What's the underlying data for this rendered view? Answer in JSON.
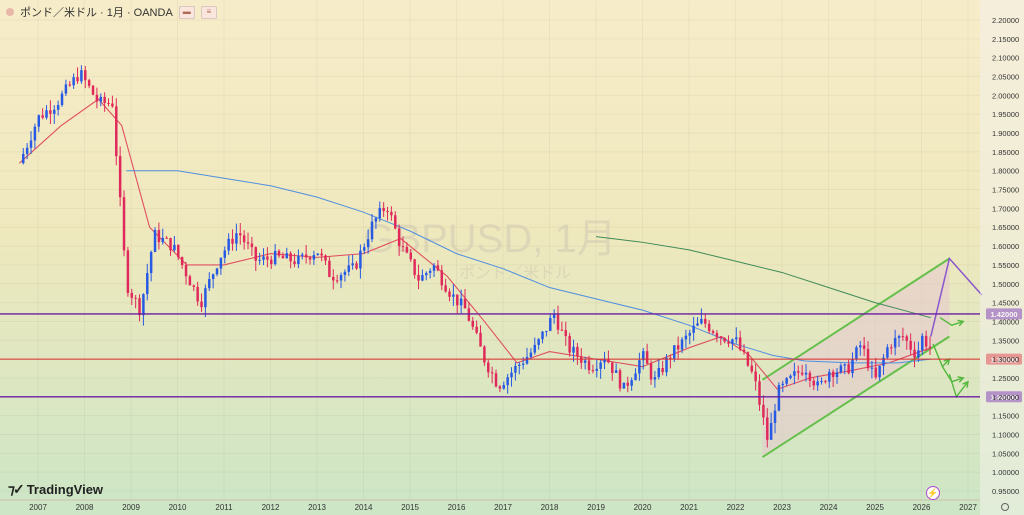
{
  "header": {
    "symbol_text": "ポンド／米ドル · 1月 · OANDA"
  },
  "watermark": {
    "symbol": "GBPUSD, 1月",
    "subtitle": "ポンド／米ドル"
  },
  "brand": {
    "name": "TradingView"
  },
  "colors": {
    "bg_top": "#f7ecc9",
    "bg_bottom": "#cce6c6",
    "up": "#2659e4",
    "down": "#e0285a",
    "ma_short": "#e04f5f",
    "ma_blue": "#4f8fe0",
    "ma_green": "#3f8a58",
    "level_purple": "#6a1fa0",
    "level_red": "#d92b2b",
    "channel": "#64c04a",
    "forecast_purple": "#8a55cc",
    "forecast_green": "#54b83e"
  },
  "chart_data": {
    "type": "candlestick",
    "title": "GBPUSD, 1月",
    "x_axis": {
      "ticks": [
        "2007",
        "2008",
        "2009",
        "2010",
        "2011",
        "2012",
        "2013",
        "2014",
        "2015",
        "2016",
        "2017",
        "2018",
        "2019",
        "2020",
        "2021",
        "2022",
        "2023",
        "2024",
        "2025",
        "2026",
        "2027"
      ]
    },
    "y_axis": {
      "range": [
        0.95,
        2.22
      ],
      "ticks": [
        "2.20000",
        "2.15000",
        "2.10000",
        "2.05000",
        "2.00000",
        "1.95000",
        "1.90000",
        "1.85000",
        "1.80000",
        "1.75000",
        "1.70000",
        "1.65000",
        "1.60000",
        "1.55000",
        "1.50000",
        "1.45000",
        "1.40000",
        "1.35000",
        "1.30000",
        "1.25000",
        "1.20000",
        "1.15000",
        "1.10000",
        "1.05000",
        "1.00000",
        "0.95000"
      ]
    },
    "horizontal_levels": [
      {
        "value": 1.42,
        "label": "1.42000",
        "color": "#6a1fa0"
      },
      {
        "value": 1.3,
        "label": "1.30000",
        "color": "#d92b2b"
      },
      {
        "value": 1.2,
        "label": "1.20000",
        "color": "#6a1fa0"
      }
    ],
    "price_anchors": [
      [
        2006.6,
        1.82
      ],
      [
        2007.0,
        1.94
      ],
      [
        2007.4,
        1.98
      ],
      [
        2007.9,
        2.06
      ],
      [
        2008.3,
        1.98
      ],
      [
        2008.6,
        1.98
      ],
      [
        2008.9,
        1.5
      ],
      [
        2009.2,
        1.43
      ],
      [
        2009.5,
        1.63
      ],
      [
        2009.9,
        1.6
      ],
      [
        2010.3,
        1.5
      ],
      [
        2010.5,
        1.45
      ],
      [
        2010.9,
        1.57
      ],
      [
        2011.3,
        1.64
      ],
      [
        2011.7,
        1.56
      ],
      [
        2012.1,
        1.57
      ],
      [
        2012.6,
        1.56
      ],
      [
        2013.0,
        1.59
      ],
      [
        2013.3,
        1.52
      ],
      [
        2013.8,
        1.54
      ],
      [
        2014.2,
        1.66
      ],
      [
        2014.5,
        1.71
      ],
      [
        2014.8,
        1.6
      ],
      [
        2015.2,
        1.51
      ],
      [
        2015.5,
        1.55
      ],
      [
        2015.9,
        1.47
      ],
      [
        2016.2,
        1.43
      ],
      [
        2016.6,
        1.3
      ],
      [
        2016.9,
        1.23
      ],
      [
        2017.3,
        1.28
      ],
      [
        2017.7,
        1.33
      ],
      [
        2018.1,
        1.42
      ],
      [
        2018.4,
        1.33
      ],
      [
        2018.9,
        1.28
      ],
      [
        2019.2,
        1.31
      ],
      [
        2019.6,
        1.22
      ],
      [
        2020.0,
        1.31
      ],
      [
        2020.25,
        1.24
      ],
      [
        2020.6,
        1.31
      ],
      [
        2020.9,
        1.35
      ],
      [
        2021.1,
        1.38
      ],
      [
        2021.3,
        1.4
      ],
      [
        2021.7,
        1.36
      ],
      [
        2022.0,
        1.35
      ],
      [
        2022.4,
        1.25
      ],
      [
        2022.7,
        1.08
      ],
      [
        2022.9,
        1.21
      ],
      [
        2023.3,
        1.26
      ],
      [
        2023.5,
        1.28
      ],
      [
        2023.8,
        1.22
      ],
      [
        2024.0,
        1.27
      ],
      [
        2024.4,
        1.27
      ],
      [
        2024.7,
        1.34
      ],
      [
        2025.0,
        1.24
      ],
      [
        2025.3,
        1.34
      ],
      [
        2025.6,
        1.36
      ],
      [
        2025.9,
        1.31
      ],
      [
        2026.0,
        1.36
      ],
      [
        2026.2,
        1.33
      ]
    ],
    "moving_averages": [
      {
        "name": "MA short",
        "color": "#e04f5f",
        "points": [
          [
            2006.6,
            1.82
          ],
          [
            2007.5,
            1.92
          ],
          [
            2008.3,
            1.99
          ],
          [
            2008.8,
            1.92
          ],
          [
            2009.4,
            1.65
          ],
          [
            2010.2,
            1.55
          ],
          [
            2011.0,
            1.55
          ],
          [
            2012.0,
            1.58
          ],
          [
            2013.0,
            1.57
          ],
          [
            2014.0,
            1.58
          ],
          [
            2014.8,
            1.62
          ],
          [
            2015.8,
            1.52
          ],
          [
            2016.6,
            1.4
          ],
          [
            2017.3,
            1.29
          ],
          [
            2018.0,
            1.32
          ],
          [
            2019.0,
            1.3
          ],
          [
            2020.0,
            1.28
          ],
          [
            2021.0,
            1.33
          ],
          [
            2021.7,
            1.36
          ],
          [
            2022.3,
            1.31
          ],
          [
            2022.9,
            1.22
          ],
          [
            2023.6,
            1.25
          ],
          [
            2024.5,
            1.27
          ],
          [
            2025.3,
            1.29
          ],
          [
            2026.2,
            1.33
          ]
        ]
      },
      {
        "name": "MA blue",
        "color": "#4f8fe0",
        "points": [
          [
            2008.9,
            1.8
          ],
          [
            2010.0,
            1.8
          ],
          [
            2011.0,
            1.78
          ],
          [
            2012.0,
            1.76
          ],
          [
            2013.0,
            1.73
          ],
          [
            2014.0,
            1.69
          ],
          [
            2015.0,
            1.64
          ],
          [
            2016.0,
            1.58
          ],
          [
            2017.0,
            1.54
          ],
          [
            2018.0,
            1.49
          ],
          [
            2019.0,
            1.46
          ],
          [
            2020.0,
            1.43
          ],
          [
            2021.0,
            1.39
          ],
          [
            2022.0,
            1.34
          ],
          [
            2022.8,
            1.31
          ],
          [
            2023.5,
            1.295
          ],
          [
            2024.5,
            1.29
          ],
          [
            2025.5,
            1.29
          ],
          [
            2026.2,
            1.3
          ]
        ]
      },
      {
        "name": "MA green",
        "color": "#3f8a58",
        "points": [
          [
            2019.0,
            1.625
          ],
          [
            2020.0,
            1.61
          ],
          [
            2021.0,
            1.59
          ],
          [
            2022.0,
            1.56
          ],
          [
            2023.0,
            1.53
          ],
          [
            2024.0,
            1.49
          ],
          [
            2025.0,
            1.45
          ],
          [
            2026.2,
            1.41
          ]
        ]
      }
    ]
  }
}
